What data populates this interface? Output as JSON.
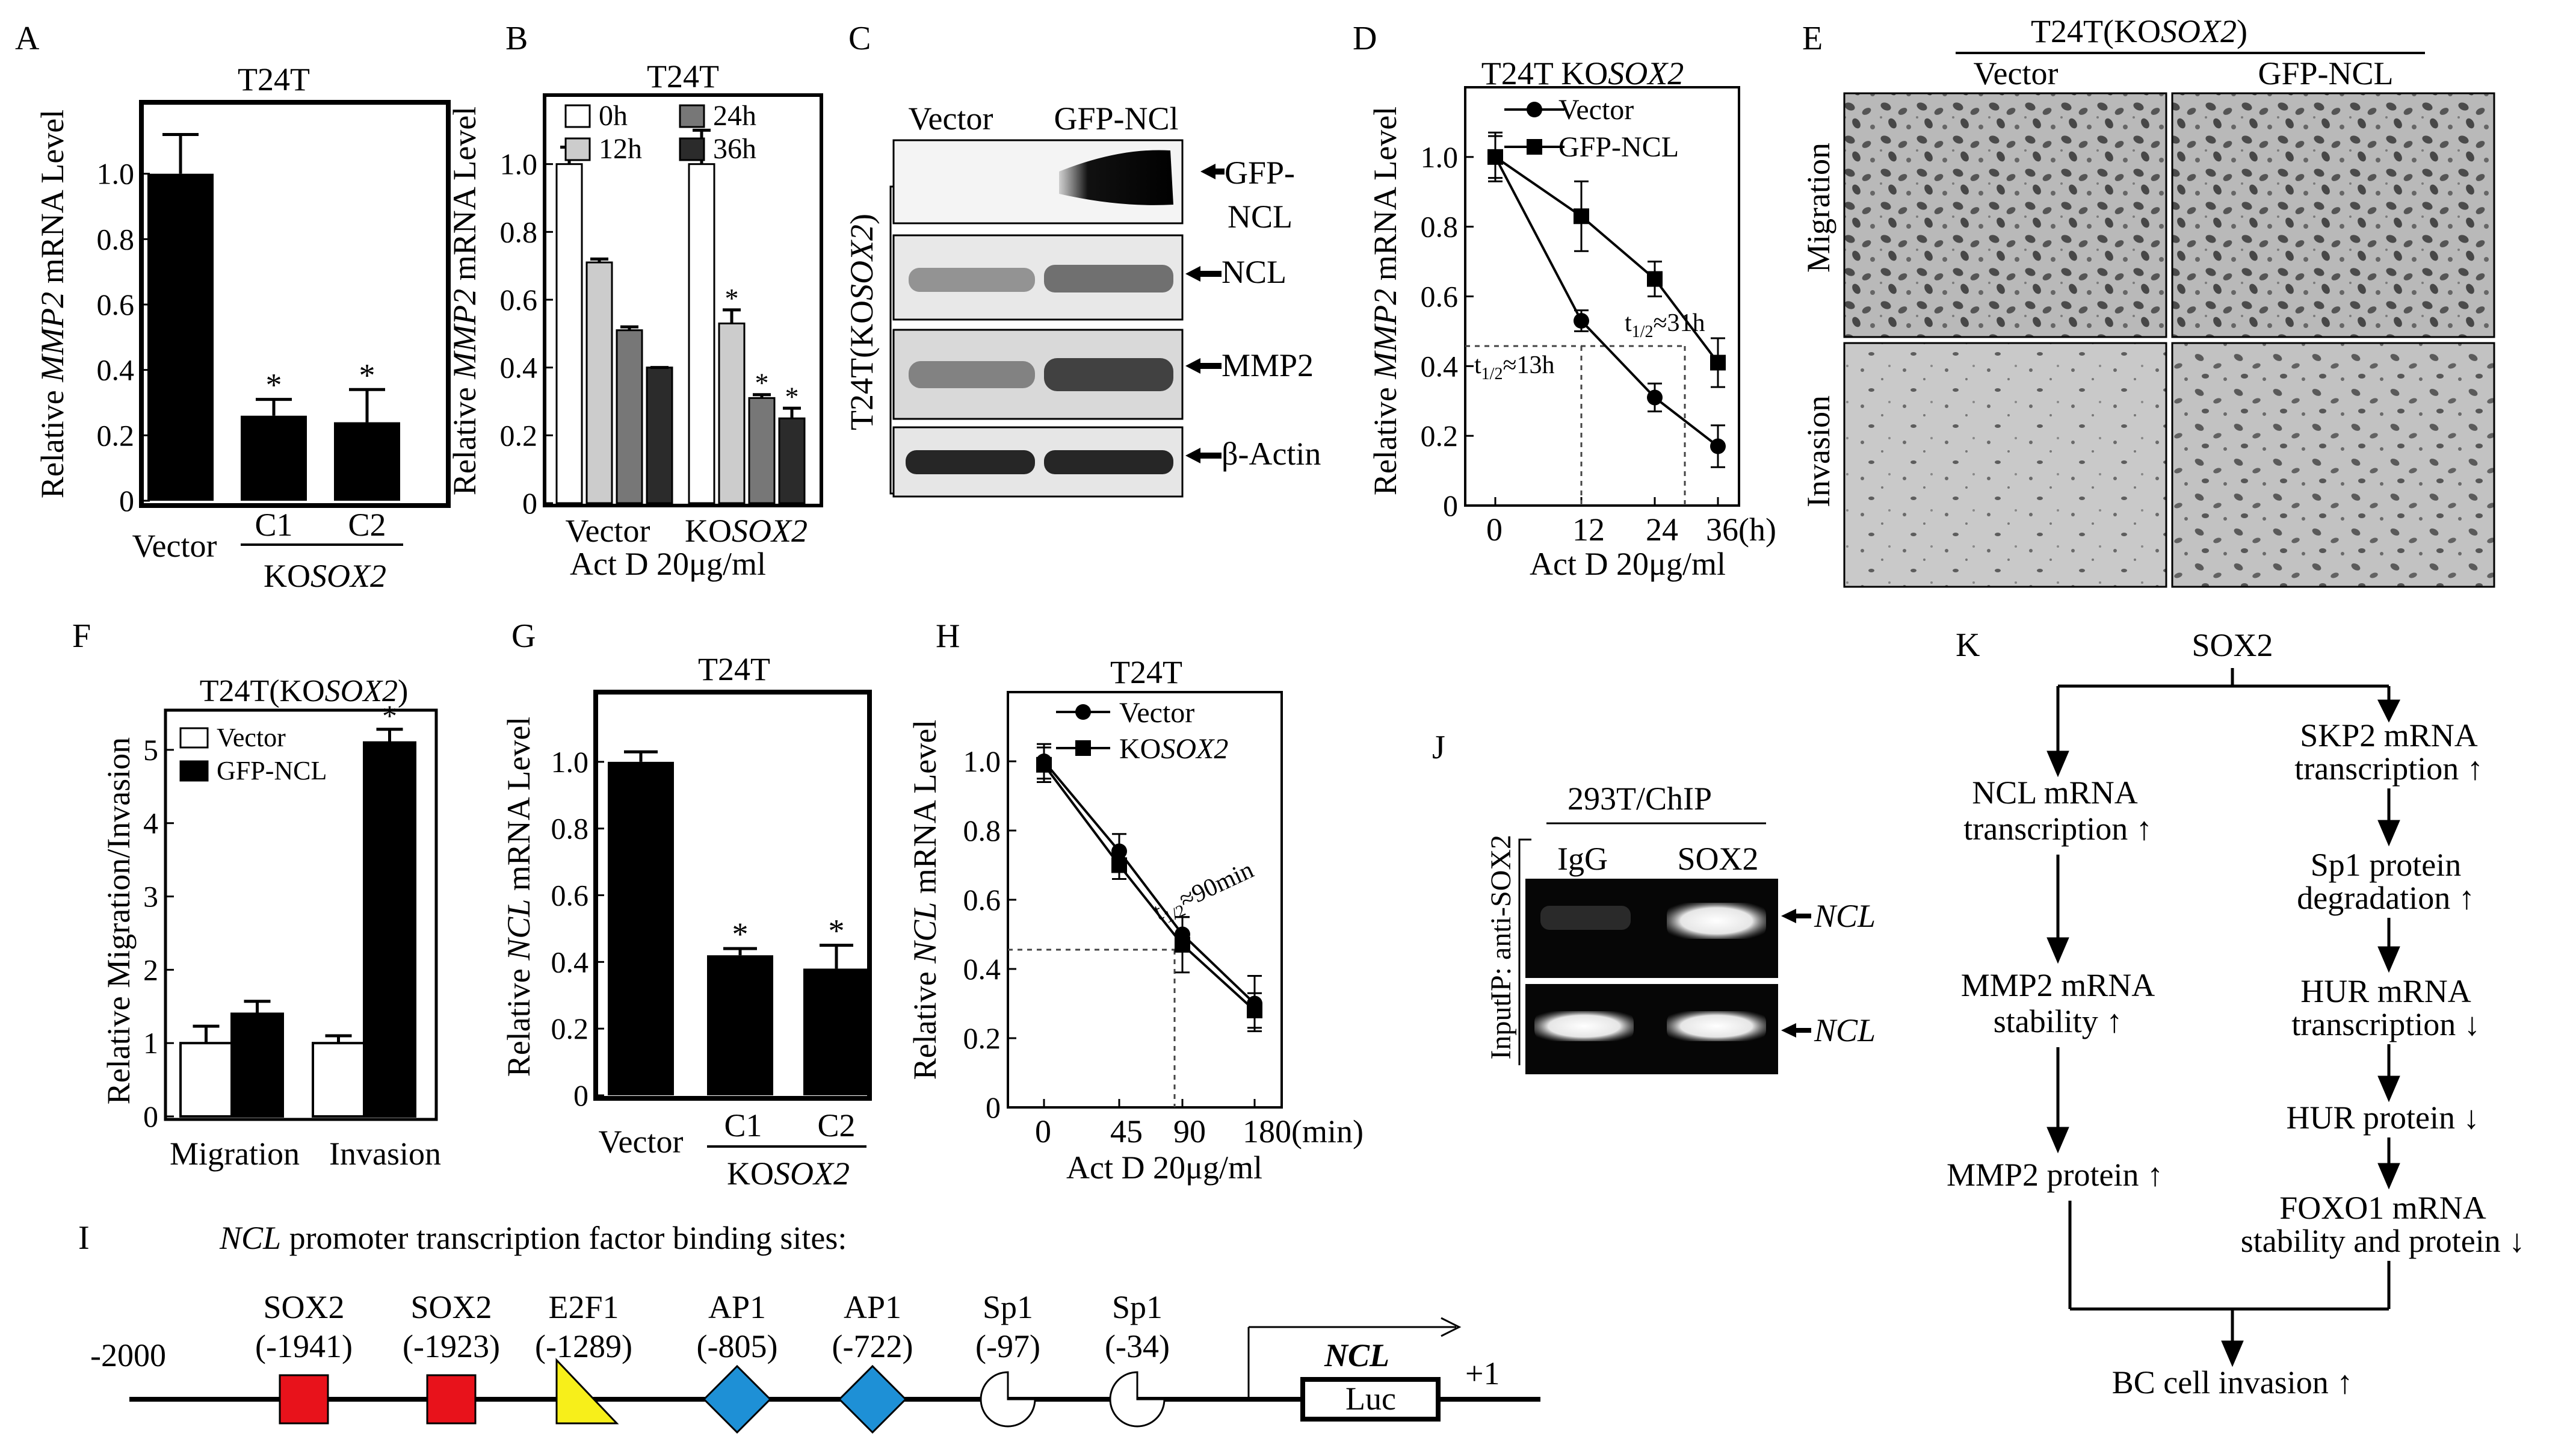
{
  "panel_letters": {
    "A": "A",
    "B": "B",
    "C": "C",
    "D": "D",
    "E": "E",
    "F": "F",
    "G": "G",
    "H": "H",
    "I": "I",
    "J": "J",
    "K": "K"
  },
  "star": "*",
  "chart_data": [
    {
      "id": "A",
      "type": "bar",
      "title": "T24T",
      "ylabel_pre": "Relative ",
      "ylabel_ital": "MMP2",
      "ylabel_post": " mRNA Level",
      "categories": [
        "Vector",
        "C1",
        "C2"
      ],
      "group_pre": "KO",
      "group_ital": "SOX2",
      "values": [
        1.0,
        0.26,
        0.24
      ],
      "errors": [
        0.12,
        0.05,
        0.1
      ],
      "significant": [
        false,
        true,
        true
      ],
      "ylim": [
        0,
        1.2
      ],
      "yticks": [
        "0",
        "0.2",
        "0.4",
        "0.6",
        "0.8",
        "1.0"
      ]
    },
    {
      "id": "B",
      "type": "bar",
      "title": "T24T",
      "ylabel_pre": "Relative ",
      "ylabel_ital": "MMP2",
      "ylabel_post": " mRNA Level",
      "categories": [
        "Vector",
        "KOSOX2"
      ],
      "cat2_pre": "KO",
      "cat2_ital": "SOX2",
      "xlabel": "Act D 20μg/ml",
      "series": [
        {
          "name": "0h",
          "color": "#ffffff",
          "values": [
            1.0,
            1.0
          ],
          "errors": [
            0.05,
            0.1
          ],
          "significant": [
            false,
            false
          ]
        },
        {
          "name": "12h",
          "color": "#cccccc",
          "values": [
            0.71,
            0.53
          ],
          "errors": [
            0.01,
            0.04
          ],
          "significant": [
            false,
            true
          ]
        },
        {
          "name": "24h",
          "color": "#777777",
          "values": [
            0.51,
            0.31
          ],
          "errors": [
            0.01,
            0.01
          ],
          "significant": [
            false,
            true
          ]
        },
        {
          "name": "36h",
          "color": "#2b2b2b",
          "values": [
            0.4,
            0.25
          ],
          "errors": [
            0.0,
            0.03
          ],
          "significant": [
            false,
            true
          ]
        }
      ],
      "ylim": [
        0,
        1.2
      ],
      "yticks": [
        "0",
        "0.2",
        "0.4",
        "0.6",
        "0.8",
        "1.0"
      ]
    },
    {
      "id": "D",
      "type": "line",
      "title_pre": "T24T KO",
      "title_ital": "SOX2",
      "ylabel_pre": "Relative ",
      "ylabel_ital": "MMP2",
      "ylabel_post": " mRNA Level",
      "x": [
        0,
        12,
        24,
        36
      ],
      "xticks": [
        "0",
        "12",
        "24",
        "36(h)"
      ],
      "xlabel": "Act D 20μg/ml",
      "series": [
        {
          "name": "Vector",
          "marker": "circle",
          "values": [
            1.0,
            0.53,
            0.31,
            0.17
          ],
          "errors": [
            0.06,
            0.03,
            0.04,
            0.06
          ]
        },
        {
          "name": "GFP-NCL",
          "marker": "square",
          "values": [
            1.0,
            0.83,
            0.65,
            0.41
          ],
          "errors": [
            0.07,
            0.1,
            0.05,
            0.07
          ]
        }
      ],
      "ann_vector": {
        "t": "t",
        "sub": "1/2",
        "rest": "≈13h"
      },
      "ann_gfp": {
        "t": "t",
        "sub": "1/2",
        "rest": "≈31h"
      },
      "ylim": [
        0,
        1.2
      ],
      "yticks": [
        "0",
        "0.2",
        "0.4",
        "0.6",
        "0.8",
        "1.0"
      ]
    },
    {
      "id": "F",
      "type": "bar",
      "title_pre": "T24T(KO",
      "title_ital": "SOX2",
      "title_post": ")",
      "ylabel": "Relative Migration/Invasion",
      "categories": [
        "Migration",
        "Invasion"
      ],
      "series": [
        {
          "name": "Vector",
          "color": "#ffffff",
          "values": [
            1.0,
            1.0
          ],
          "errors": [
            0.23,
            0.1
          ],
          "significant": [
            false,
            false
          ]
        },
        {
          "name": "GFP-NCL",
          "color": "#000000",
          "values": [
            1.4,
            5.1
          ],
          "errors": [
            0.17,
            0.18
          ],
          "significant": [
            false,
            true
          ]
        }
      ],
      "ylim": [
        0,
        5.5
      ],
      "yticks": [
        "0",
        "1",
        "2",
        "3",
        "4",
        "5"
      ]
    },
    {
      "id": "G",
      "type": "bar",
      "title": "T24T",
      "ylabel_pre": "Relative ",
      "ylabel_ital": "NCL",
      "ylabel_post": " mRNA Level",
      "categories": [
        "Vector",
        "C1",
        "C2"
      ],
      "group_pre": "KO",
      "group_ital": "SOX2",
      "values": [
        1.0,
        0.42,
        0.38
      ],
      "errors": [
        0.03,
        0.02,
        0.07
      ],
      "significant": [
        false,
        true,
        true
      ],
      "ylim": [
        0,
        1.2
      ],
      "yticks": [
        "0",
        "0.2",
        "0.4",
        "0.6",
        "0.8",
        "1.0"
      ]
    },
    {
      "id": "H",
      "type": "line",
      "title": "T24T",
      "ylabel_pre": "Relative ",
      "ylabel_ital": "NCL",
      "ylabel_post": " mRNA Level",
      "x": [
        0,
        45,
        90,
        180
      ],
      "xticks": [
        "0",
        "45",
        "90",
        "180(min)"
      ],
      "xlabel": "Act D 20μg/ml",
      "legend_kosox2_pre": "KO",
      "legend_kosox2_ital": "SOX2",
      "series": [
        {
          "name": "Vector",
          "marker": "circle",
          "values": [
            1.0,
            0.74,
            0.5,
            0.3
          ],
          "errors": [
            0.05,
            0.05,
            0.05,
            0.08
          ]
        },
        {
          "name": "KOSOX2",
          "marker": "square",
          "values": [
            0.99,
            0.7,
            0.47,
            0.28
          ],
          "errors": [
            0.05,
            0.04,
            0.08,
            0.05
          ]
        }
      ],
      "ann": {
        "t": "t",
        "sub": "1/2",
        "rest": "≈90min"
      },
      "ylim": [
        0,
        1.2
      ],
      "yticks": [
        "0",
        "0.2",
        "0.4",
        "0.6",
        "0.8",
        "1.0"
      ]
    }
  ],
  "panel_c": {
    "col_vector": "Vector",
    "col_gfp": "GFP-NCl",
    "side_pre": "T24T(KO",
    "side_ital": "SOX2",
    "side_post": ")",
    "bands": [
      "GFP-",
      "NCL",
      "NCL",
      "MMP2",
      "β-Actin"
    ]
  },
  "panel_e": {
    "title_pre": "T24T(KO",
    "title_ital": "SOX2",
    "title_post": ")",
    "cols": [
      "Vector",
      "GFP-NCL"
    ],
    "rows": [
      "Migration",
      "Invasion"
    ]
  },
  "panel_i": {
    "title_ital": "NCL",
    "title_rest": " promoter transcription factor binding sites:",
    "start": "-2000",
    "end": "+1",
    "sites": [
      {
        "name": "SOX2",
        "pos": "(-1941)",
        "shape": "square",
        "color": "#e8121b"
      },
      {
        "name": "SOX2",
        "pos": "(-1923)",
        "shape": "square",
        "color": "#e8121b"
      },
      {
        "name": "E2F1",
        "pos": "(-1289)",
        "shape": "triangle",
        "color": "#f7ef1a"
      },
      {
        "name": "AP1",
        "pos": "(-805)",
        "shape": "diamond",
        "color": "#1e90d6"
      },
      {
        "name": "AP1",
        "pos": "(-722)",
        "shape": "diamond",
        "color": "#1e90d6"
      },
      {
        "name": "Sp1",
        "pos": "(-97)",
        "shape": "pacman",
        "color": "#ffffff"
      },
      {
        "name": "Sp1",
        "pos": "(-34)",
        "shape": "pacman",
        "color": "#ffffff"
      }
    ],
    "gene": "NCL",
    "reporter": "Luc"
  },
  "panel_j": {
    "title": "293T/ChIP",
    "cols": [
      "IgG",
      "SOX2"
    ],
    "side_ip": "IP: anti-SOX2",
    "side_input": "Input",
    "band_label": "NCL"
  },
  "panel_k": {
    "root": "SOX2",
    "left": [
      "NCL mRNA",
      "transcription ↑",
      "MMP2 mRNA",
      "stability ↑",
      "MMP2 protein ↑"
    ],
    "right": [
      "SKP2 mRNA",
      "transcription ↑",
      "Sp1 protein",
      "degradation ↑",
      "HUR mRNA",
      "transcription ↓",
      "HUR protein ↓",
      "FOXO1 mRNA",
      "stability and protein ↓"
    ],
    "bottom": "BC cell invasion ↑"
  }
}
